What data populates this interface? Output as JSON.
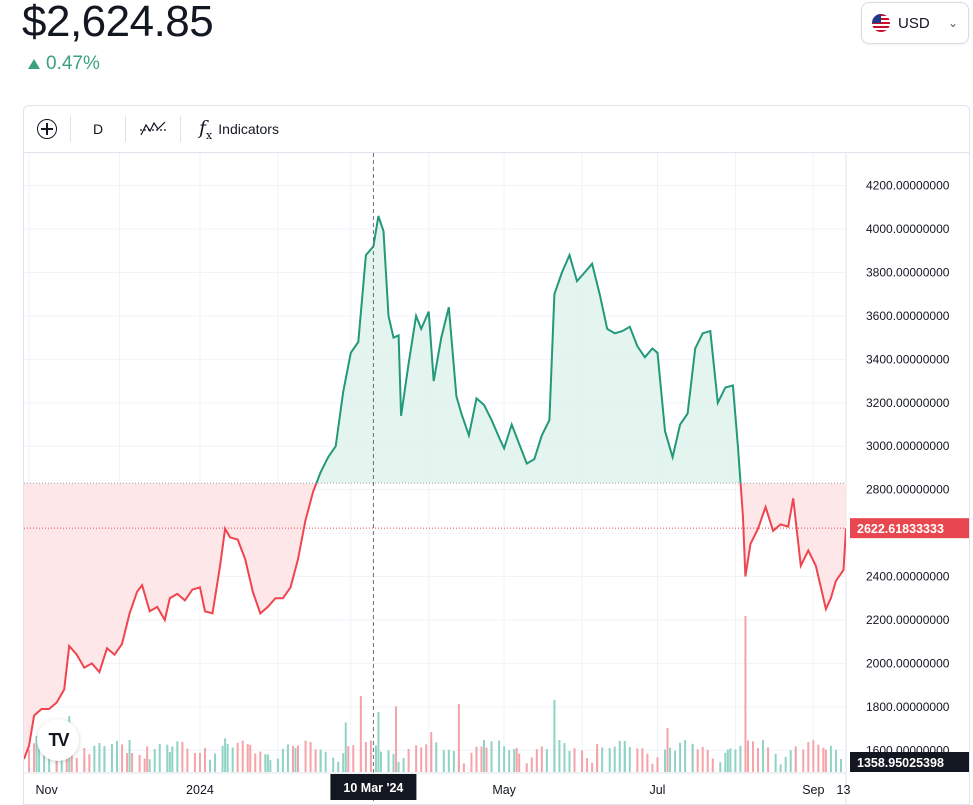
{
  "header": {
    "price": "$2,624.85",
    "change": "0.47%",
    "currency": {
      "label": "USD",
      "flag_icon": "us-flag-icon"
    }
  },
  "toolbar": {
    "add_icon": "plus-circle-icon",
    "interval": "D",
    "chart_style_icon": "candles-style-icon",
    "indicators_icon": "fx-icon",
    "indicators_label": "Indicators"
  },
  "colors": {
    "up": "#22997a",
    "up_fill": "#dff2ec",
    "down": "#f0444f",
    "down_fill": "#fde3e4",
    "vol_up": "#8fd3c4",
    "vol_down": "#f5a3a8",
    "price_tag": "#e8474f",
    "volume_tag": "#131722"
  },
  "chart_data": {
    "type": "area",
    "baseline": 2830,
    "ylim": [
      1500,
      4350
    ],
    "y_ticks": [
      1600,
      1800,
      2000,
      2200,
      2400,
      2600,
      2800,
      3000,
      3200,
      3400,
      3600,
      3800,
      4000,
      4200
    ],
    "y_tick_labels": [
      "1600.00000000",
      "1800.00000000",
      "2000.00000000",
      "2200.00000000",
      "2400.00000000",
      "2600.00000000",
      "2800.00000000",
      "3000.00000000",
      "3200.00000000",
      "3400.00000000",
      "3600.00000000",
      "3800.00000000",
      "4000.00000000",
      "4200.00000000"
    ],
    "x_range": [
      "2023-10-23",
      "2024-09-14"
    ],
    "x_ticks": [
      {
        "date": "2023-11-01",
        "label": "Nov"
      },
      {
        "date": "2024-01-01",
        "label": "2024"
      },
      {
        "date": "2024-05-01",
        "label": "May"
      },
      {
        "date": "2024-07-01",
        "label": "Jul"
      },
      {
        "date": "2024-09-01",
        "label": "Sep"
      },
      {
        "date": "2024-09-13",
        "label": "13"
      }
    ],
    "crosshair": {
      "date": "2024-03-10",
      "label": "10 Mar '24"
    },
    "last_price": 2622.61833333,
    "last_price_label": "2622.61833333",
    "last_volume_label": "1358.95025398",
    "series": [
      {
        "values": [
          [
            "2023-10-23",
            1560
          ],
          [
            "2023-10-25",
            1620
          ],
          [
            "2023-10-27",
            1760
          ],
          [
            "2023-10-30",
            1790
          ],
          [
            "2023-11-02",
            1790
          ],
          [
            "2023-11-05",
            1820
          ],
          [
            "2023-11-08",
            1880
          ],
          [
            "2023-11-10",
            2080
          ],
          [
            "2023-11-13",
            2040
          ],
          [
            "2023-11-16",
            1980
          ],
          [
            "2023-11-19",
            2000
          ],
          [
            "2023-11-22",
            1960
          ],
          [
            "2023-11-25",
            2070
          ],
          [
            "2023-11-28",
            2040
          ],
          [
            "2023-12-01",
            2090
          ],
          [
            "2023-12-04",
            2230
          ],
          [
            "2023-12-07",
            2330
          ],
          [
            "2023-12-09",
            2360
          ],
          [
            "2023-12-12",
            2240
          ],
          [
            "2023-12-15",
            2260
          ],
          [
            "2023-12-18",
            2200
          ],
          [
            "2023-12-20",
            2300
          ],
          [
            "2023-12-23",
            2320
          ],
          [
            "2023-12-26",
            2290
          ],
          [
            "2023-12-29",
            2340
          ],
          [
            "2024-01-01",
            2350
          ],
          [
            "2024-01-03",
            2240
          ],
          [
            "2024-01-06",
            2230
          ],
          [
            "2024-01-09",
            2450
          ],
          [
            "2024-01-11",
            2620
          ],
          [
            "2024-01-13",
            2580
          ],
          [
            "2024-01-16",
            2570
          ],
          [
            "2024-01-19",
            2480
          ],
          [
            "2024-01-22",
            2330
          ],
          [
            "2024-01-25",
            2230
          ],
          [
            "2024-01-28",
            2260
          ],
          [
            "2024-01-31",
            2300
          ],
          [
            "2024-02-03",
            2300
          ],
          [
            "2024-02-06",
            2350
          ],
          [
            "2024-02-09",
            2480
          ],
          [
            "2024-02-12",
            2660
          ],
          [
            "2024-02-15",
            2790
          ],
          [
            "2024-02-18",
            2880
          ],
          [
            "2024-02-21",
            2950
          ],
          [
            "2024-02-24",
            3000
          ],
          [
            "2024-02-27",
            3250
          ],
          [
            "2024-03-01",
            3430
          ],
          [
            "2024-03-04",
            3480
          ],
          [
            "2024-03-07",
            3880
          ],
          [
            "2024-03-10",
            3920
          ],
          [
            "2024-03-12",
            4060
          ],
          [
            "2024-03-14",
            3990
          ],
          [
            "2024-03-16",
            3600
          ],
          [
            "2024-03-18",
            3500
          ],
          [
            "2024-03-20",
            3510
          ],
          [
            "2024-03-21",
            3140
          ],
          [
            "2024-03-24",
            3380
          ],
          [
            "2024-03-27",
            3600
          ],
          [
            "2024-03-29",
            3540
          ],
          [
            "2024-04-01",
            3620
          ],
          [
            "2024-04-03",
            3300
          ],
          [
            "2024-04-06",
            3500
          ],
          [
            "2024-04-09",
            3640
          ],
          [
            "2024-04-12",
            3230
          ],
          [
            "2024-04-14",
            3150
          ],
          [
            "2024-04-17",
            3050
          ],
          [
            "2024-04-20",
            3220
          ],
          [
            "2024-04-23",
            3190
          ],
          [
            "2024-04-26",
            3120
          ],
          [
            "2024-04-29",
            3040
          ],
          [
            "2024-05-01",
            2990
          ],
          [
            "2024-05-04",
            3100
          ],
          [
            "2024-05-07",
            3010
          ],
          [
            "2024-05-10",
            2920
          ],
          [
            "2024-05-13",
            2940
          ],
          [
            "2024-05-16",
            3050
          ],
          [
            "2024-05-19",
            3120
          ],
          [
            "2024-05-21",
            3700
          ],
          [
            "2024-05-24",
            3800
          ],
          [
            "2024-05-27",
            3880
          ],
          [
            "2024-05-30",
            3760
          ],
          [
            "2024-06-02",
            3800
          ],
          [
            "2024-06-05",
            3840
          ],
          [
            "2024-06-08",
            3700
          ],
          [
            "2024-06-11",
            3540
          ],
          [
            "2024-06-14",
            3520
          ],
          [
            "2024-06-17",
            3530
          ],
          [
            "2024-06-20",
            3550
          ],
          [
            "2024-06-23",
            3460
          ],
          [
            "2024-06-26",
            3410
          ],
          [
            "2024-06-29",
            3450
          ],
          [
            "2024-07-01",
            3430
          ],
          [
            "2024-07-04",
            3070
          ],
          [
            "2024-07-07",
            2950
          ],
          [
            "2024-07-10",
            3100
          ],
          [
            "2024-07-13",
            3150
          ],
          [
            "2024-07-16",
            3450
          ],
          [
            "2024-07-19",
            3520
          ],
          [
            "2024-07-22",
            3530
          ],
          [
            "2024-07-25",
            3200
          ],
          [
            "2024-07-28",
            3270
          ],
          [
            "2024-07-31",
            3280
          ],
          [
            "2024-08-02",
            3000
          ],
          [
            "2024-08-04",
            2680
          ],
          [
            "2024-08-05",
            2400
          ],
          [
            "2024-08-07",
            2550
          ],
          [
            "2024-08-10",
            2620
          ],
          [
            "2024-08-13",
            2720
          ],
          [
            "2024-08-16",
            2610
          ],
          [
            "2024-08-19",
            2640
          ],
          [
            "2024-08-22",
            2630
          ],
          [
            "2024-08-24",
            2760
          ],
          [
            "2024-08-27",
            2450
          ],
          [
            "2024-08-30",
            2520
          ],
          [
            "2024-09-02",
            2450
          ],
          [
            "2024-09-04",
            2350
          ],
          [
            "2024-09-06",
            2250
          ],
          [
            "2024-09-08",
            2300
          ],
          [
            "2024-09-10",
            2380
          ],
          [
            "2024-09-13",
            2430
          ],
          [
            "2024-09-14",
            2622.6
          ]
        ]
      }
    ],
    "volume": [
      {
        "date": "2023-10-28",
        "v": 0.45,
        "up": true
      },
      {
        "date": "2023-11-05",
        "v": 0.38,
        "up": false
      },
      {
        "date": "2023-11-10",
        "v": 0.7,
        "up": true
      },
      {
        "date": "2023-11-16",
        "v": 0.3,
        "up": false
      },
      {
        "date": "2023-11-24",
        "v": 0.28,
        "up": true
      },
      {
        "date": "2023-12-04",
        "v": 0.4,
        "up": true
      },
      {
        "date": "2023-12-11",
        "v": 0.32,
        "up": false
      },
      {
        "date": "2023-12-20",
        "v": 0.25,
        "up": true
      },
      {
        "date": "2024-01-03",
        "v": 0.3,
        "up": false
      },
      {
        "date": "2024-01-11",
        "v": 0.42,
        "up": true
      },
      {
        "date": "2024-01-20",
        "v": 0.35,
        "up": false
      },
      {
        "date": "2024-01-28",
        "v": 0.22,
        "up": true
      },
      {
        "date": "2024-02-08",
        "v": 0.3,
        "up": true
      },
      {
        "date": "2024-02-18",
        "v": 0.28,
        "up": true
      },
      {
        "date": "2024-02-28",
        "v": 0.62,
        "up": true
      },
      {
        "date": "2024-03-05",
        "v": 0.95,
        "up": false
      },
      {
        "date": "2024-03-12",
        "v": 0.75,
        "up": true
      },
      {
        "date": "2024-03-19",
        "v": 0.82,
        "up": false
      },
      {
        "date": "2024-04-02",
        "v": 0.5,
        "up": false
      },
      {
        "date": "2024-04-13",
        "v": 0.85,
        "up": false
      },
      {
        "date": "2024-04-23",
        "v": 0.4,
        "up": true
      },
      {
        "date": "2024-05-06",
        "v": 0.3,
        "up": false
      },
      {
        "date": "2024-05-21",
        "v": 0.9,
        "up": true
      },
      {
        "date": "2024-06-07",
        "v": 0.35,
        "up": false
      },
      {
        "date": "2024-06-18",
        "v": 0.3,
        "up": true
      },
      {
        "date": "2024-07-05",
        "v": 0.55,
        "up": false
      },
      {
        "date": "2024-07-15",
        "v": 0.35,
        "up": true
      },
      {
        "date": "2024-07-29",
        "v": 0.28,
        "up": true
      },
      {
        "date": "2024-08-05",
        "v": 1.95,
        "up": false
      },
      {
        "date": "2024-08-12",
        "v": 0.4,
        "up": true
      },
      {
        "date": "2024-08-25",
        "v": 0.32,
        "up": false
      },
      {
        "date": "2024-09-06",
        "v": 0.28,
        "up": false
      }
    ]
  }
}
